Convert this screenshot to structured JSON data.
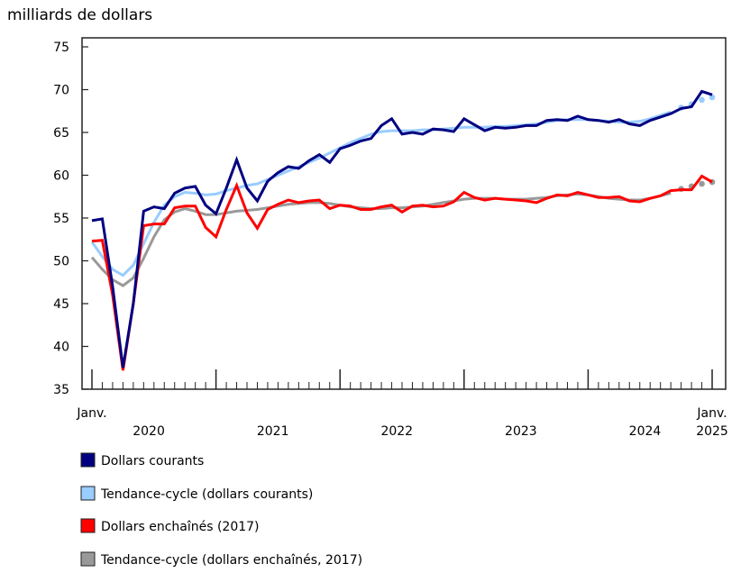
{
  "chart_data": {
    "type": "line",
    "ylabel": "milliards de dollars",
    "ylim": [
      35,
      75
    ],
    "yticks": [
      35,
      40,
      45,
      50,
      55,
      60,
      65,
      70,
      75
    ],
    "x_start": "2020-01",
    "x_end": "2025-01",
    "x_first_label": "Janv.",
    "x_last_label": "Janv.",
    "year_labels": [
      "2020",
      "2021",
      "2022",
      "2023",
      "2024",
      "2025"
    ],
    "grid": false,
    "legend_position": "bottom",
    "series": [
      {
        "name": "Dollars courants",
        "color": "#000080",
        "style": "line",
        "values": [
          54.7,
          54.9,
          47,
          37.5,
          45,
          55.8,
          56.3,
          56.1,
          57.9,
          58.5,
          58.7,
          56.5,
          55.5,
          58.5,
          61.8,
          58.5,
          57,
          59.3,
          60.3,
          61,
          60.8,
          61.7,
          62.4,
          61.5,
          63.1,
          63.5,
          64,
          64.3,
          65.8,
          66.6,
          64.8,
          65,
          64.8,
          65.4,
          65.3,
          65.1,
          66.6,
          65.9,
          65.2,
          65.6,
          65.5,
          65.6,
          65.8,
          65.8,
          66.4,
          66.5,
          66.4,
          66.9,
          66.5,
          66.4,
          66.2,
          66.5,
          66,
          65.8,
          66.4,
          66.8,
          67.2,
          67.8,
          68,
          69.8,
          69.4
        ]
      },
      {
        "name": "Tendance-cycle (dollars courants)",
        "color": "#99ccff",
        "style": "line-then-dots",
        "dotted_last": 4,
        "values": [
          52.2,
          50.5,
          49,
          48.3,
          49.5,
          52,
          54.5,
          56.5,
          57.5,
          58,
          57.9,
          57.7,
          57.8,
          58.2,
          58.5,
          58.8,
          59,
          59.5,
          60,
          60.5,
          61,
          61.5,
          62,
          62.6,
          63.2,
          63.8,
          64.3,
          64.8,
          65.1,
          65.2,
          65.2,
          65.2,
          65.3,
          65.3,
          65.4,
          65.5,
          65.6,
          65.6,
          65.6,
          65.7,
          65.7,
          65.8,
          65.9,
          66,
          66.2,
          66.4,
          66.5,
          66.5,
          66.5,
          66.4,
          66.3,
          66.2,
          66.2,
          66.3,
          66.6,
          67,
          67.4,
          67.9,
          68.3,
          68.8,
          69.1
        ]
      },
      {
        "name": "Dollars enchaînés (2017)",
        "color": "#ff0000",
        "style": "line",
        "values": [
          52.3,
          52.4,
          46,
          37.2,
          45,
          54.1,
          54.3,
          54.3,
          56.2,
          56.4,
          56.4,
          53.9,
          52.8,
          56,
          58.8,
          55.6,
          53.8,
          56,
          56.6,
          57.1,
          56.8,
          57,
          57.1,
          56.1,
          56.5,
          56.4,
          56,
          56,
          56.3,
          56.5,
          55.7,
          56.4,
          56.5,
          56.3,
          56.4,
          56.9,
          58,
          57.4,
          57.1,
          57.3,
          57.2,
          57.1,
          57,
          56.8,
          57.3,
          57.7,
          57.6,
          58,
          57.7,
          57.4,
          57.4,
          57.5,
          57,
          56.9,
          57.3,
          57.6,
          58.2,
          58.3,
          58.3,
          59.9,
          59.2
        ]
      },
      {
        "name": "Tendance-cycle (dollars enchaînés, 2017)",
        "color": "#999999",
        "style": "line-then-dots",
        "dotted_last": 4,
        "values": [
          50.4,
          49,
          47.8,
          47.1,
          48,
          50.3,
          52.8,
          54.8,
          55.7,
          56.1,
          55.8,
          55.4,
          55.4,
          55.6,
          55.8,
          55.9,
          56,
          56.2,
          56.4,
          56.6,
          56.7,
          56.8,
          56.8,
          56.7,
          56.5,
          56.3,
          56.2,
          56.1,
          56.1,
          56.2,
          56.2,
          56.3,
          56.4,
          56.6,
          56.8,
          57,
          57.2,
          57.3,
          57.3,
          57.3,
          57.2,
          57.2,
          57.2,
          57.3,
          57.4,
          57.6,
          57.7,
          57.8,
          57.7,
          57.5,
          57.3,
          57.2,
          57.1,
          57.1,
          57.3,
          57.6,
          57.9,
          58.4,
          58.7,
          59,
          59.2
        ]
      }
    ]
  }
}
